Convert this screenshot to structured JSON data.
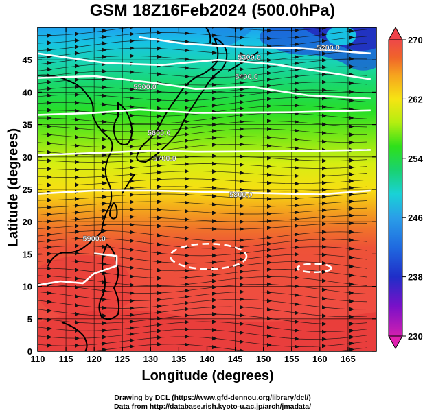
{
  "title": "GSM 18Z16Feb2024 (500.0hPa)",
  "x_axis": {
    "label": "Longitude (degrees)",
    "range": [
      110,
      170
    ],
    "ticks": [
      110,
      115,
      120,
      125,
      130,
      135,
      140,
      145,
      150,
      155,
      160,
      165
    ]
  },
  "y_axis": {
    "label": "Latitude  (degrees)",
    "range": [
      0,
      50
    ],
    "ticks": [
      0,
      5,
      10,
      15,
      20,
      25,
      30,
      35,
      40,
      45
    ]
  },
  "colorbar": {
    "ticks": [
      270,
      262,
      254,
      246,
      238,
      230
    ],
    "range": [
      230,
      270
    ],
    "colors": [
      "#d21fb0",
      "#5a10c8",
      "#1f2ec8",
      "#2a86e6",
      "#19d2de",
      "#19d26a",
      "#2ee01a",
      "#b4ee10",
      "#f6e413",
      "#f6a41e",
      "#f0642a",
      "#ee4848"
    ]
  },
  "contours": [
    {
      "label": "5200.0",
      "lat": [
        48.5,
        47.5,
        47,
        46.8,
        46
      ],
      "lon": [
        128,
        136,
        145,
        156,
        169
      ]
    },
    {
      "label": "5300.0",
      "lat": [
        46,
        44.5,
        44.2,
        45,
        44.3,
        42
      ],
      "lon": [
        110,
        122,
        132,
        142,
        152,
        169
      ]
    },
    {
      "label": "5400.0",
      "lat": [
        42.2,
        42.5,
        41.5,
        40.5,
        40.8,
        39.5,
        39
      ],
      "lon": [
        110,
        120,
        130,
        138,
        148,
        158,
        169
      ]
    },
    {
      "label": "5500.0",
      "lat": [
        36.5,
        36.8,
        37.3,
        36.8,
        36.9,
        37.2
      ],
      "lon": [
        110,
        120,
        128,
        138,
        155,
        169
      ]
    },
    {
      "label": "5600.0",
      "lat": [
        30.3,
        30.6,
        31.0,
        30.8,
        30.9,
        31.1
      ],
      "lon": [
        110,
        120,
        130,
        138,
        155,
        169
      ]
    },
    {
      "label": "5700.0",
      "lat": [
        24.3,
        24.8,
        24.8,
        24.6,
        24.4,
        24.2,
        24.8
      ],
      "lon": [
        110,
        120,
        130,
        140,
        150,
        160,
        169
      ]
    },
    {
      "label": "5800.0",
      "lat": [
        10.2,
        10.8,
        10.5,
        12.0,
        13.2,
        14.7,
        15.1
      ],
      "lon": [
        110,
        114,
        118,
        120,
        124,
        124,
        120
      ]
    }
  ],
  "contour_labels": [
    {
      "text": "5200.0",
      "lon": 161.5,
      "lat": 46.5
    },
    {
      "text": "5300.0",
      "lon": 147.5,
      "lat": 45.0
    },
    {
      "text": "5400.0",
      "lon": 147.0,
      "lat": 42.0
    },
    {
      "text": "5500.0",
      "lon": 129.0,
      "lat": 40.4
    },
    {
      "text": "5600.0",
      "lon": 131.5,
      "lat": 33.3
    },
    {
      "text": "5700.0",
      "lon": 132.5,
      "lat": 29.4
    },
    {
      "text": "5800.0",
      "lon": 146.0,
      "lat": 23.8
    },
    {
      "text": "5900.0",
      "lon": 120.0,
      "lat": 17.0
    }
  ],
  "highs": [
    {
      "label": "5900.0",
      "lon_range": [
        133.5,
        147
      ],
      "lat_range": [
        12.7,
        16.6
      ]
    },
    {
      "label": "5900.0",
      "lon_range": [
        156,
        162
      ],
      "lat_range": [
        12.2,
        13.5
      ]
    }
  ],
  "credits": [
    "Drawing by DCL (https://www.gfd-dennou.org/library/dcl/)",
    "Data from http://database.rish.kyoto-u.ac.jp/arch/jmadata/"
  ]
}
